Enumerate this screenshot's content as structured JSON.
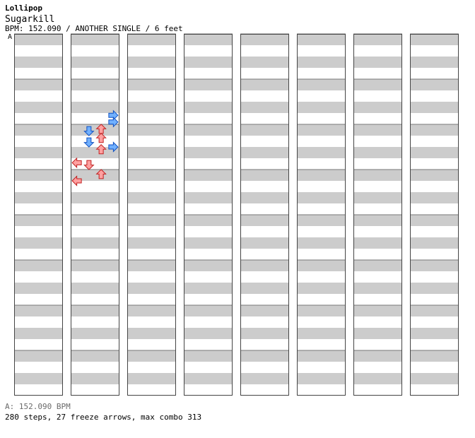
{
  "header": {
    "title": "Lollipop",
    "artist": "Sugarkill",
    "info": "BPM: 152.090 / ANOTHER SINGLE / 6 feet",
    "section_label": "A"
  },
  "footer": {
    "bpm": "A: 152.090 BPM",
    "stats": "280 steps, 27 freeze arrows, max combo 313"
  },
  "colors": {
    "stripe": "#cccccc",
    "red_arrow": "#ffa0a0",
    "red_outline": "#c02020",
    "blue_arrow": "#70b0ff",
    "blue_outline": "#1050c0",
    "freeze_fill": "#c8ffc8",
    "freeze_outline": "#208020",
    "mine_arrow": "#ffa0ff"
  },
  "lanes": [
    "left",
    "down",
    "up",
    "right"
  ],
  "columns": [
    {
      "notes": [],
      "freezes": []
    },
    {
      "notes": [
        {
          "lane": 3,
          "pos": 1.8,
          "color": "blue"
        },
        {
          "lane": 3,
          "pos": 1.95,
          "color": "blue"
        },
        {
          "lane": 2,
          "pos": 2.1,
          "color": "red"
        },
        {
          "lane": 1,
          "pos": 2.15,
          "color": "blue"
        },
        {
          "lane": 2,
          "pos": 2.3,
          "color": "red"
        },
        {
          "lane": 1,
          "pos": 2.4,
          "color": "blue"
        },
        {
          "lane": 3,
          "pos": 2.5,
          "color": "blue"
        },
        {
          "lane": 2,
          "pos": 2.55,
          "color": "red"
        },
        {
          "lane": 0,
          "pos": 2.85,
          "color": "red"
        },
        {
          "lane": 1,
          "pos": 2.9,
          "color": "red"
        },
        {
          "lane": 2,
          "pos": 3.1,
          "color": "red"
        },
        {
          "lane": 0,
          "pos": 3.25,
          "color": "red"
        }
      ],
      "freezes": []
    },
    {
      "notes": [],
      "freezes": []
    }
  ]
}
